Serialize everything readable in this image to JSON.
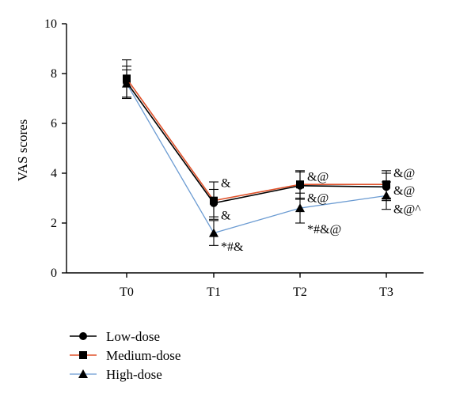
{
  "chart_data": {
    "type": "line",
    "title": "",
    "xlabel": "",
    "ylabel": "VAS scores",
    "categories": [
      "T0",
      "T1",
      "T2",
      "T3"
    ],
    "ylim": [
      0,
      10
    ],
    "yticks": [
      "0",
      "2",
      "4",
      "6",
      "8",
      "10"
    ],
    "grid": false,
    "legend_position": "bottom-left",
    "series": [
      {
        "name": "Low-dose",
        "marker": "circle",
        "color": "#000000",
        "values": [
          7.65,
          2.8,
          3.5,
          3.45
        ],
        "errors": [
          0.65,
          0.55,
          0.55,
          0.55
        ]
      },
      {
        "name": "Medium-dose",
        "marker": "square",
        "color": "#e0522b",
        "values": [
          7.8,
          2.9,
          3.55,
          3.55
        ],
        "errors": [
          0.75,
          0.75,
          0.55,
          0.55
        ]
      },
      {
        "name": "High-dose",
        "marker": "triangle",
        "color": "#6b9bd2",
        "values": [
          7.6,
          1.6,
          2.6,
          3.1
        ],
        "errors": [
          0.55,
          0.5,
          0.6,
          0.55
        ]
      }
    ],
    "annotations": [
      {
        "category": "T1",
        "y": 3.6,
        "text": "&"
      },
      {
        "category": "T1",
        "y": 2.3,
        "text": "&"
      },
      {
        "category": "T1",
        "y": 1.05,
        "text": "*#&"
      },
      {
        "category": "T2",
        "y": 3.85,
        "text": "&@"
      },
      {
        "category": "T2",
        "y": 3.0,
        "text": "&@"
      },
      {
        "category": "T2",
        "y": 1.75,
        "text": "*#&@"
      },
      {
        "category": "T3",
        "y": 4.0,
        "text": "&@"
      },
      {
        "category": "T3",
        "y": 3.3,
        "text": "&@"
      },
      {
        "category": "T3",
        "y": 2.55,
        "text": "&@^"
      }
    ]
  }
}
